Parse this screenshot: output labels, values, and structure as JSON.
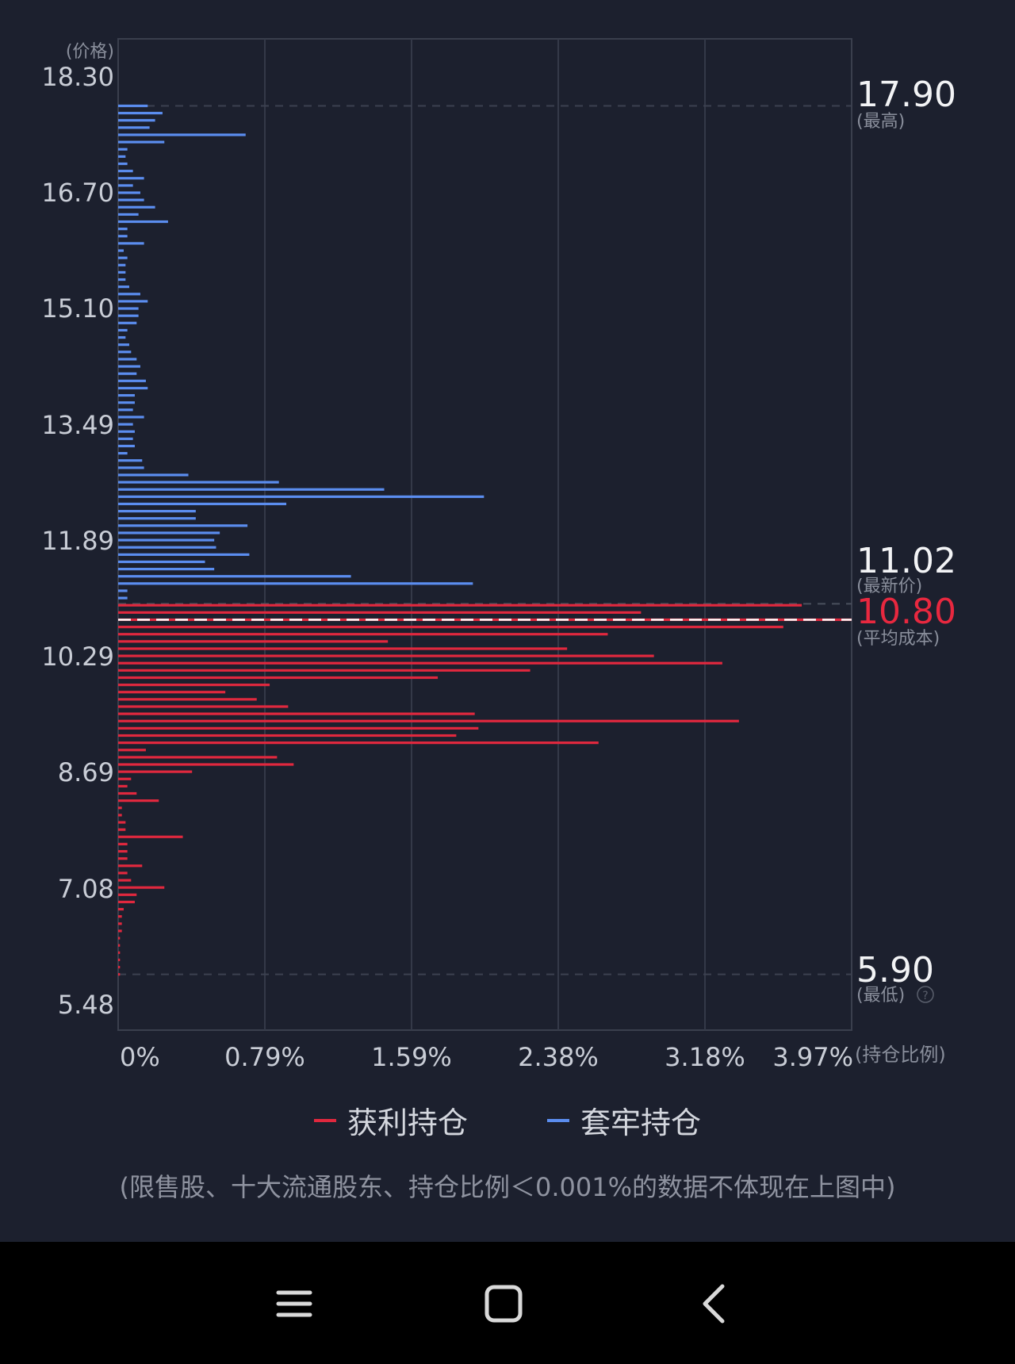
{
  "chart_data": {
    "type": "bar",
    "orientation": "horizontal",
    "y_axis_unit": "(价格)",
    "x_axis_unit": "(持仓比例)",
    "y_ticks": [
      "18.30",
      "16.70",
      "15.10",
      "13.49",
      "11.89",
      "10.29",
      "8.69",
      "7.08",
      "5.48"
    ],
    "x_ticks": [
      "0%",
      "0.79%",
      "1.59%",
      "2.38%",
      "3.18%",
      "3.97%"
    ],
    "xlim": [
      0,
      3.97
    ],
    "ylim": [
      5.48,
      18.3
    ],
    "grid": true,
    "markers": {
      "high": {
        "value": "17.90",
        "label": "(最高)"
      },
      "latest": {
        "value": "11.02",
        "label": "(最新价)"
      },
      "avg_cost": {
        "value": "10.80",
        "label": "(平均成本)"
      },
      "low": {
        "value": "5.90",
        "label": "(最低)"
      }
    },
    "series": [
      {
        "name": "套牢持仓",
        "color": "#5b8def",
        "prices": [
          17.9,
          17.8,
          17.7,
          17.6,
          17.5,
          17.4,
          17.3,
          17.2,
          17.1,
          17.0,
          16.9,
          16.8,
          16.7,
          16.6,
          16.5,
          16.4,
          16.3,
          16.2,
          16.1,
          16.0,
          15.9,
          15.8,
          15.7,
          15.6,
          15.5,
          15.4,
          15.3,
          15.2,
          15.1,
          15.0,
          14.9,
          14.8,
          14.7,
          14.6,
          14.5,
          14.4,
          14.3,
          14.2,
          14.1,
          14.0,
          13.9,
          13.8,
          13.7,
          13.6,
          13.5,
          13.4,
          13.3,
          13.2,
          13.1,
          13.0,
          12.9,
          12.8,
          12.7,
          12.6,
          12.5,
          12.4,
          12.3,
          12.2,
          12.1,
          12.0,
          11.9,
          11.8,
          11.7,
          11.6,
          11.5,
          11.4,
          11.3,
          11.2,
          11.1
        ],
        "values": [
          0.16,
          0.24,
          0.2,
          0.17,
          0.69,
          0.25,
          0.05,
          0.04,
          0.05,
          0.08,
          0.14,
          0.08,
          0.12,
          0.14,
          0.2,
          0.11,
          0.27,
          0.05,
          0.05,
          0.14,
          0.03,
          0.05,
          0.04,
          0.04,
          0.04,
          0.06,
          0.12,
          0.16,
          0.11,
          0.11,
          0.1,
          0.05,
          0.04,
          0.06,
          0.07,
          0.1,
          0.12,
          0.1,
          0.15,
          0.16,
          0.09,
          0.09,
          0.08,
          0.14,
          0.08,
          0.09,
          0.08,
          0.09,
          0.05,
          0.13,
          0.14,
          0.38,
          0.87,
          1.44,
          1.98,
          0.91,
          0.42,
          0.42,
          0.7,
          0.55,
          0.52,
          0.53,
          0.71,
          0.47,
          0.52,
          1.26,
          1.92,
          0.05,
          0.05
        ]
      },
      {
        "name": "获利持仓",
        "color": "#e0283e",
        "prices": [
          11.0,
          10.9,
          10.8,
          10.7,
          10.6,
          10.5,
          10.4,
          10.3,
          10.2,
          10.1,
          10.0,
          9.9,
          9.8,
          9.7,
          9.6,
          9.5,
          9.4,
          9.3,
          9.2,
          9.1,
          9.0,
          8.9,
          8.8,
          8.7,
          8.6,
          8.5,
          8.4,
          8.3,
          8.2,
          8.1,
          8.0,
          7.9,
          7.8,
          7.7,
          7.6,
          7.5,
          7.4,
          7.3,
          7.2,
          7.1,
          7.0,
          6.9,
          6.8,
          6.7,
          6.6,
          6.5,
          6.4,
          6.3,
          6.2,
          6.1,
          6.0,
          5.9
        ],
        "values": [
          3.7,
          2.83,
          3.97,
          3.6,
          2.65,
          1.46,
          2.43,
          2.9,
          3.27,
          2.23,
          1.73,
          0.82,
          0.58,
          0.75,
          0.92,
          1.93,
          3.36,
          1.95,
          1.83,
          2.6,
          0.15,
          0.86,
          0.95,
          0.4,
          0.07,
          0.05,
          0.1,
          0.22,
          0.02,
          0.02,
          0.04,
          0.04,
          0.35,
          0.05,
          0.05,
          0.05,
          0.13,
          0.05,
          0.07,
          0.25,
          0.1,
          0.09,
          0.03,
          0.02,
          0.02,
          0.02,
          0.01,
          0.01,
          0.01,
          0.01,
          0.01,
          0.01
        ]
      }
    ],
    "legend": [
      {
        "label": "获利持仓",
        "color": "#e0283e"
      },
      {
        "label": "套牢持仓",
        "color": "#5b8def"
      }
    ],
    "note": "(限售股、十大流通股东、持仓比例＜0.001%的数据不体现在上图中)"
  },
  "nav": {
    "buttons": [
      {
        "icon": "menu-icon"
      },
      {
        "icon": "home-square-icon"
      },
      {
        "icon": "back-chevron-icon"
      }
    ]
  }
}
